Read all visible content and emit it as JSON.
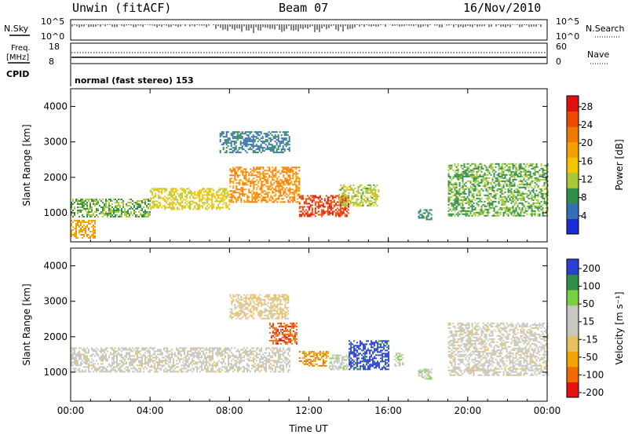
{
  "header": {
    "station": "Unwin (fitACF)",
    "beam": "Beam 07",
    "date": "16/Nov/2010"
  },
  "aux_panels": {
    "nsky_label": "N.Sky",
    "nsky_ticks": [
      "10^5",
      "10^0"
    ],
    "nsearch_label": "N.Search",
    "nsearch_ticks": [
      "10^5",
      "10^0"
    ],
    "freq_label": "Freq.",
    "freq_unit": "[MHz]",
    "freq_ticks": [
      "18",
      "8"
    ],
    "nave_label": "Nave",
    "nave_ticks": [
      "60",
      "0"
    ],
    "cpid_label": "CPID",
    "cpid_value": "normal (fast stereo) 153"
  },
  "chart_data": [
    {
      "type": "heatmap",
      "title": "",
      "xlabel": "Time UT",
      "ylabel": "Slant Range [km]",
      "x_ticks": [
        "00:00",
        "04:00",
        "08:00",
        "12:00",
        "16:00",
        "20:00",
        "00:00"
      ],
      "xlim_hours": [
        0,
        24
      ],
      "y_ticks": [
        1000,
        2000,
        3000,
        4000
      ],
      "ylim": [
        180,
        4500
      ],
      "colorbar": {
        "label": "Power [dB]",
        "ticks": [
          "4",
          "8",
          "12",
          "16",
          "20",
          "24",
          "28"
        ],
        "range": [
          0,
          30
        ],
        "colors": [
          "#1a2cd6",
          "#3470b8",
          "#2f8f4a",
          "#a8c83a",
          "#f5c400",
          "#f5a000",
          "#f07a00",
          "#ee4a00",
          "#e01010"
        ]
      },
      "regions": [
        {
          "t0": 0.0,
          "t1": 4.0,
          "r0": 900,
          "r1": 1400,
          "level": 10
        },
        {
          "t0": 4.0,
          "t1": 8.0,
          "r0": 1100,
          "r1": 1700,
          "level": 14
        },
        {
          "t0": 8.0,
          "t1": 11.5,
          "r0": 1300,
          "r1": 2300,
          "level": 20
        },
        {
          "t0": 7.5,
          "t1": 11.0,
          "r0": 2700,
          "r1": 3300,
          "level": 6
        },
        {
          "t0": 11.5,
          "t1": 14.0,
          "r0": 900,
          "r1": 1500,
          "level": 26
        },
        {
          "t0": 13.5,
          "t1": 15.5,
          "r0": 1200,
          "r1": 1800,
          "level": 12
        },
        {
          "t0": 17.5,
          "t1": 18.2,
          "r0": 800,
          "r1": 1100,
          "level": 8
        },
        {
          "t0": 19.0,
          "t1": 24.0,
          "r0": 900,
          "r1": 2400,
          "level": 10
        },
        {
          "t0": 0.0,
          "t1": 1.2,
          "r0": 300,
          "r1": 800,
          "level": 18
        }
      ]
    },
    {
      "type": "heatmap",
      "title": "",
      "xlabel": "Time UT",
      "ylabel": "Slant Range [km]",
      "x_ticks": [
        "00:00",
        "04:00",
        "08:00",
        "12:00",
        "16:00",
        "20:00",
        "00:00"
      ],
      "xlim_hours": [
        0,
        24
      ],
      "y_ticks": [
        1000,
        2000,
        3000,
        4000
      ],
      "ylim": [
        180,
        4500
      ],
      "colorbar": {
        "label": "Velocity [m s⁻¹]",
        "ticks": [
          "200",
          "100",
          "50",
          "15",
          "-15",
          "-50",
          "-100",
          "-200"
        ],
        "range": [
          -250,
          250
        ],
        "colors": [
          "#e81010",
          "#f06a00",
          "#f2a400",
          "#e8c060",
          "#c8c8c0",
          "#c8c8c0",
          "#7ad040",
          "#2f8f4a",
          "#2a40d0"
        ]
      },
      "regions": [
        {
          "t0": 0.0,
          "t1": 11.0,
          "r0": 1000,
          "r1": 1700,
          "level": 0
        },
        {
          "t0": 8.0,
          "t1": 11.0,
          "r0": 2500,
          "r1": 3200,
          "level": -40
        },
        {
          "t0": 10.0,
          "t1": 11.4,
          "r0": 1800,
          "r1": 2400,
          "level": -180
        },
        {
          "t0": 11.5,
          "t1": 13.0,
          "r0": 1200,
          "r1": 1600,
          "level": -130
        },
        {
          "t0": 13.0,
          "t1": 14.5,
          "r0": 1100,
          "r1": 1500,
          "level": 60
        },
        {
          "t0": 14.0,
          "t1": 16.0,
          "r0": 1100,
          "r1": 1900,
          "level": 220
        },
        {
          "t0": 16.3,
          "t1": 16.7,
          "r0": 1200,
          "r1": 1600,
          "level": 70
        },
        {
          "t0": 17.5,
          "t1": 18.2,
          "r0": 800,
          "r1": 1100,
          "level": 60
        },
        {
          "t0": 19.0,
          "t1": 24.0,
          "r0": 900,
          "r1": 2400,
          "level": 0
        }
      ]
    }
  ]
}
